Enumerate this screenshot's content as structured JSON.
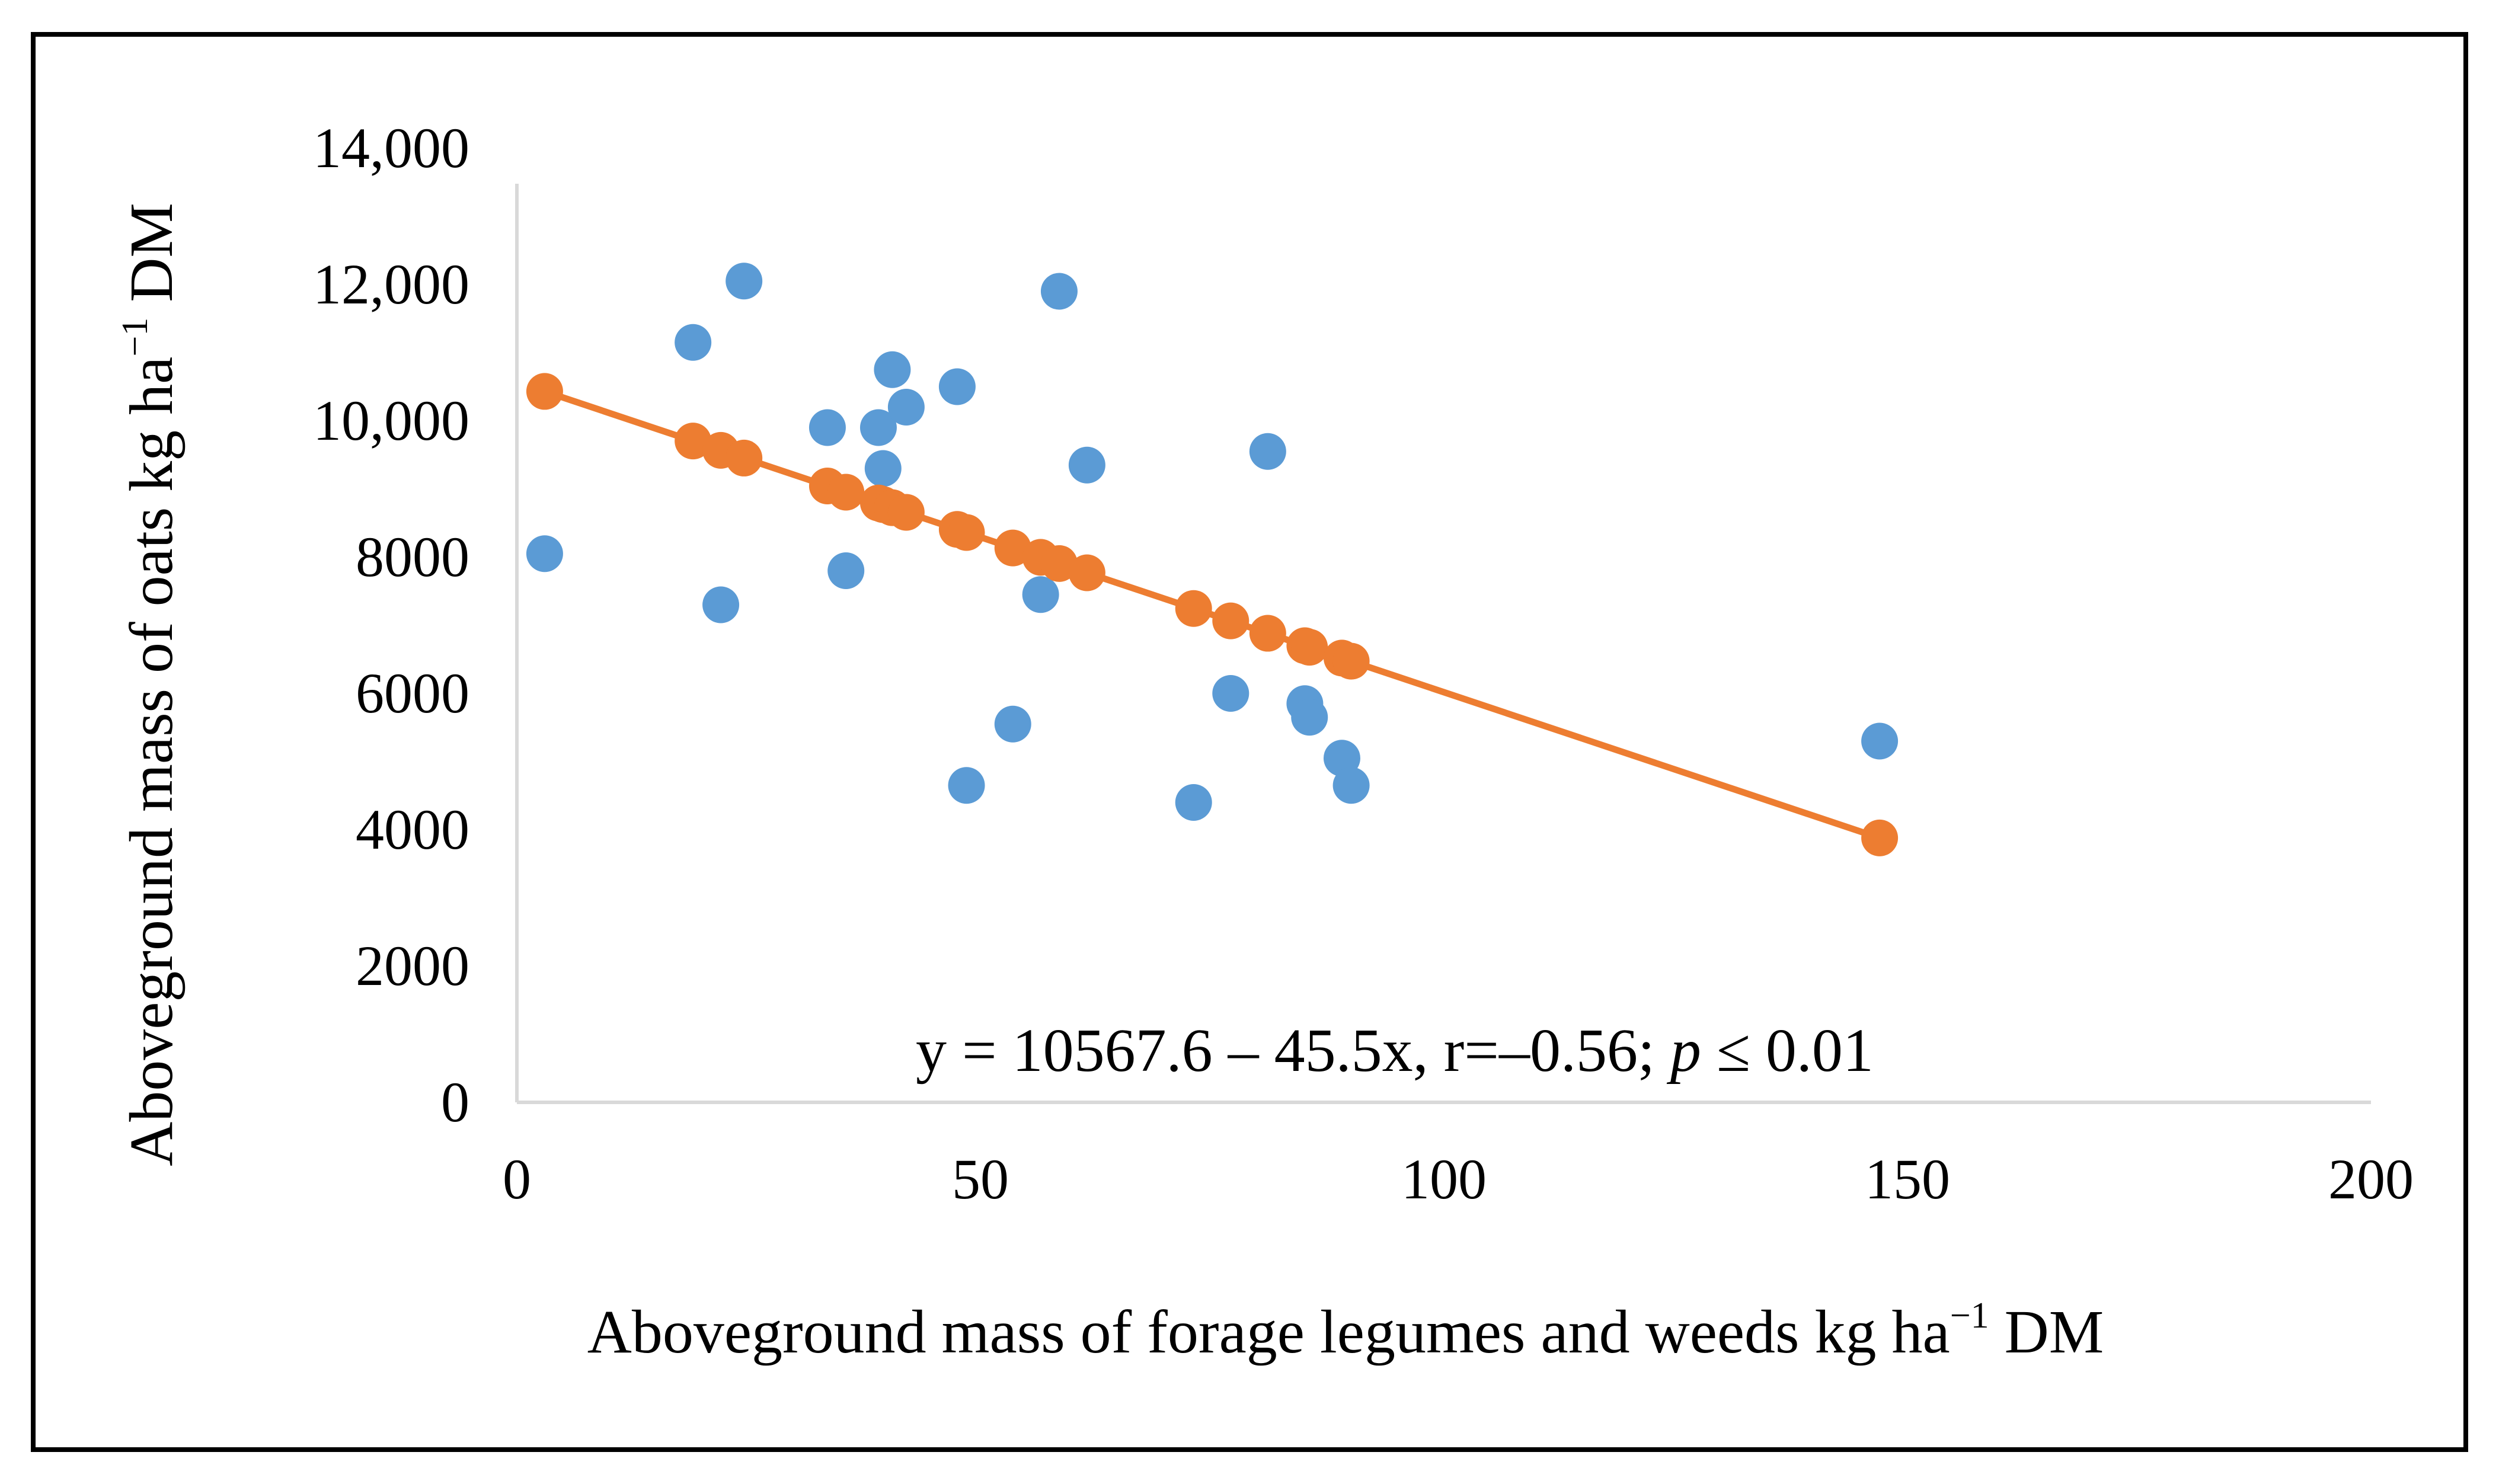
{
  "chart_data": {
    "type": "scatter",
    "title": "",
    "xlabel": {
      "main": "Aboveground mass of forage legumes and weeds  kg ha",
      "sup": "−1",
      "tail": " DM"
    },
    "ylabel": {
      "main": "Aboveground mass of oats kg ha",
      "sup": "−1",
      "tail": " DM"
    },
    "xlim": [
      0,
      200
    ],
    "ylim": [
      0,
      14000
    ],
    "x_ticks": [
      0,
      50,
      100,
      150,
      200
    ],
    "x_tick_labels": [
      "0",
      "50",
      "100",
      "150",
      "200"
    ],
    "y_ticks": [
      0,
      2000,
      4000,
      6000,
      8000,
      10000,
      12000,
      14000
    ],
    "y_tick_labels": [
      "0",
      "2000",
      "4000",
      "6000",
      "8000",
      "10,000",
      "12,000",
      "14,000"
    ],
    "grid": false,
    "legend": "none",
    "colors": {
      "observed": "#5B9BD5",
      "fitted": "#ED7D31",
      "axis": "#D9D9D9"
    },
    "series": [
      {
        "name": "observed",
        "kind": "scatter",
        "color": "#5B9BD5",
        "points": [
          [
            3,
            8050
          ],
          [
            19,
            11150
          ],
          [
            22,
            7300
          ],
          [
            24.5,
            12050
          ],
          [
            33.5,
            9900
          ],
          [
            35.5,
            7800
          ],
          [
            39,
            9900
          ],
          [
            39.5,
            9300
          ],
          [
            40.5,
            10750
          ],
          [
            42,
            10200
          ],
          [
            47.5,
            10500
          ],
          [
            48.5,
            4650
          ],
          [
            53.5,
            5550
          ],
          [
            56.5,
            7450
          ],
          [
            58.5,
            11900
          ],
          [
            61.5,
            9350
          ],
          [
            73,
            4400
          ],
          [
            77,
            6000
          ],
          [
            81,
            9550
          ],
          [
            85,
            5850
          ],
          [
            85.5,
            5650
          ],
          [
            89,
            5050
          ],
          [
            90,
            4650
          ],
          [
            147,
            5300
          ]
        ]
      },
      {
        "name": "fitted",
        "kind": "line+markers",
        "color": "#ED7D31",
        "intercept": 10567.6,
        "slope": -45.5,
        "x": [
          3,
          19,
          22,
          24.5,
          33.5,
          35.5,
          39,
          39.5,
          40.5,
          42,
          47.5,
          48.5,
          53.5,
          56.5,
          58.5,
          61.5,
          73,
          77,
          81,
          85,
          85.5,
          89,
          90,
          147
        ]
      }
    ],
    "annotation": {
      "prefix": "y = 10567.6 – 45.5x,  r=–0.56; ",
      "italic": "p",
      "suffix": " ≤ 0.01"
    }
  }
}
